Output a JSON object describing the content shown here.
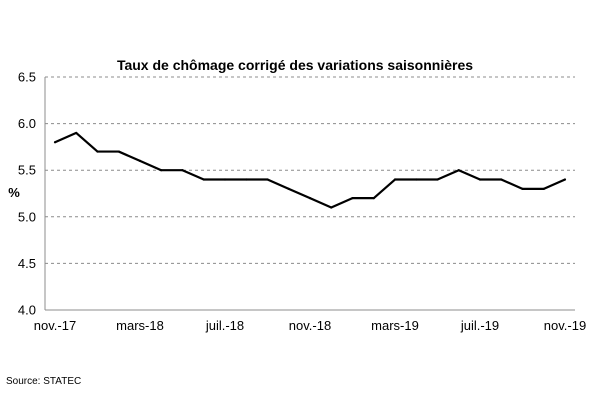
{
  "chart_data": {
    "type": "line",
    "title": "Taux de chômage corrigé des variations saisonnières",
    "ylabel": "%",
    "xlabel": "",
    "ylim": [
      4.0,
      6.5
    ],
    "yticks": [
      "4.0",
      "4.5",
      "5.0",
      "5.5",
      "6.0",
      "6.5"
    ],
    "grid": true,
    "x": [
      "nov.-17",
      "déc.-17",
      "janv.-18",
      "févr.-18",
      "mars-18",
      "avr.-18",
      "mai-18",
      "juin-18",
      "juil.-18",
      "août-18",
      "sept.-18",
      "oct.-18",
      "nov.-18",
      "déc.-18",
      "janv.-19",
      "févr.-19",
      "mars-19",
      "avr.-19",
      "mai-19",
      "juin-19",
      "juil.-19",
      "août-19",
      "sept.-19",
      "oct.-19",
      "nov.-19"
    ],
    "xtick_labels": [
      "nov.-17",
      "mars-18",
      "juil.-18",
      "nov.-18",
      "mars-19",
      "juil.-19",
      "nov.-19"
    ],
    "series": [
      {
        "values": [
          5.8,
          5.9,
          5.7,
          5.7,
          5.6,
          5.5,
          5.5,
          5.4,
          5.4,
          5.4,
          5.4,
          5.3,
          5.2,
          5.1,
          5.2,
          5.2,
          5.4,
          5.4,
          5.4,
          5.5,
          5.4,
          5.4,
          5.3,
          5.3,
          5.4
        ],
        "color": "#000000"
      }
    ]
  },
  "source": "Source: STATEC"
}
